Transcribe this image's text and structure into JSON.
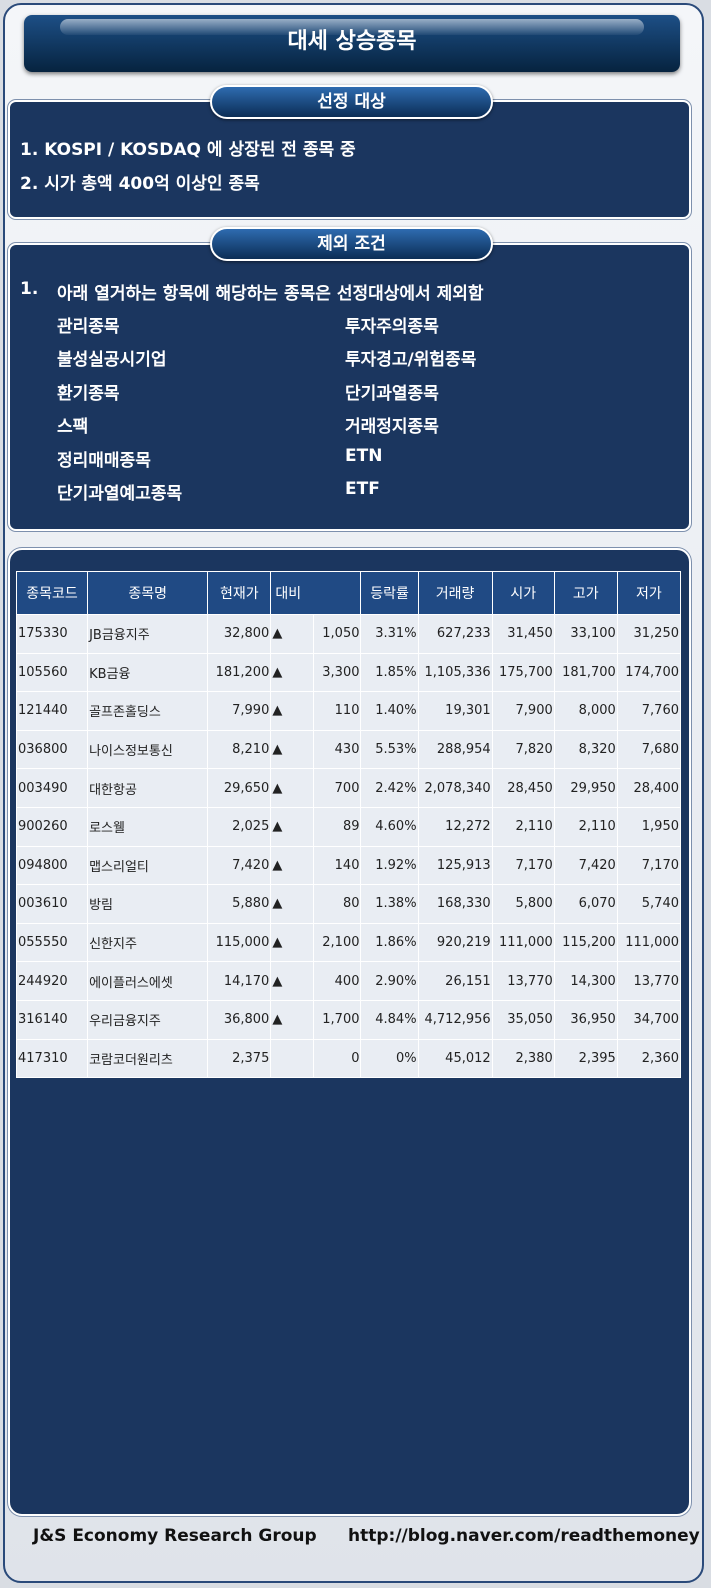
{
  "header": {
    "title": "대세 상승종목"
  },
  "selection": {
    "title": "선정 대상",
    "items": [
      "1. KOSPI / KOSDAQ 에 상장된 전 종목 중",
      "2. 시가 총액 400억 이상인 종목"
    ]
  },
  "exclusion": {
    "title": "제외 조건",
    "number": "1.",
    "text": "아래 열거하는 항목에 해당하는 종목은 선정대상에서 제외함",
    "left": [
      "관리종목",
      "불성실공시기업",
      "환기종목",
      "스팩",
      "정리매매종목",
      "단기과열예고종목"
    ],
    "right": [
      "투자주의종목",
      "투자경고/위험종목",
      "단기과열종목",
      "거래정지종목",
      "ETN",
      "ETF"
    ]
  },
  "table": {
    "headers": [
      "종목코드",
      "종목명",
      "현재가",
      "대비",
      "등락률",
      "거래량",
      "시가",
      "고가",
      "저가"
    ],
    "rows": [
      [
        "175330",
        "JB금융지주",
        "32,800",
        "▲",
        "1,050",
        "3.31%",
        "627,233",
        "31,450",
        "33,100",
        "31,250"
      ],
      [
        "105560",
        "KB금융",
        "181,200",
        "▲",
        "3,300",
        "1.85%",
        "1,105,336",
        "175,700",
        "181,700",
        "174,700"
      ],
      [
        "121440",
        "골프존홀딩스",
        "7,990",
        "▲",
        "110",
        "1.40%",
        "19,301",
        "7,900",
        "8,000",
        "7,760"
      ],
      [
        "036800",
        "나이스정보통신",
        "8,210",
        "▲",
        "430",
        "5.53%",
        "288,954",
        "7,820",
        "8,320",
        "7,680"
      ],
      [
        "003490",
        "대한항공",
        "29,650",
        "▲",
        "700",
        "2.42%",
        "2,078,340",
        "28,450",
        "29,950",
        "28,400"
      ],
      [
        "900260",
        "로스웰",
        "2,025",
        "▲",
        "89",
        "4.60%",
        "12,272",
        "2,110",
        "2,110",
        "1,950"
      ],
      [
        "094800",
        "맵스리얼티",
        "7,420",
        "▲",
        "140",
        "1.92%",
        "125,913",
        "7,170",
        "7,420",
        "7,170"
      ],
      [
        "003610",
        "방림",
        "5,880",
        "▲",
        "80",
        "1.38%",
        "168,330",
        "5,800",
        "6,070",
        "5,740"
      ],
      [
        "055550",
        "신한지주",
        "115,000",
        "▲",
        "2,100",
        "1.86%",
        "920,219",
        "111,000",
        "115,200",
        "111,000"
      ],
      [
        "244920",
        "에이플러스에셋",
        "14,170",
        "▲",
        "400",
        "2.90%",
        "26,151",
        "13,770",
        "14,300",
        "13,770"
      ],
      [
        "316140",
        "우리금융지주",
        "36,800",
        "▲",
        "1,700",
        "4.84%",
        "4,712,956",
        "35,050",
        "36,950",
        "34,700"
      ],
      [
        "417310",
        "코람코더원리츠",
        "2,375",
        null,
        "0",
        "0%",
        "45,012",
        "2,380",
        "2,395",
        "2,360"
      ]
    ]
  },
  "footer": {
    "left": "J&S Economy Research Group",
    "right": "http://blog.naver.com/readthemoney"
  }
}
